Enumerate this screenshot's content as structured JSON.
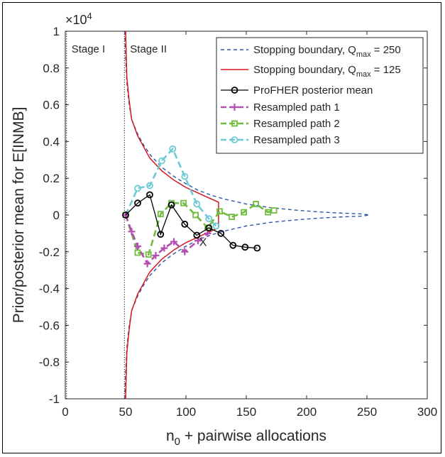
{
  "chart_data": {
    "type": "line",
    "xlabel": "n",
    "xlabel_sub": "0",
    "xlabel_rest": " + pairwise allocations",
    "ylabel": "Prior/posterior mean for E[INMB]",
    "exponent_prefix": "×10",
    "exponent_power": "4",
    "xlim": [
      0,
      300
    ],
    "ylim": [
      -1,
      1
    ],
    "xticks": [
      0,
      50,
      100,
      150,
      200,
      250,
      300
    ],
    "yticks": [
      -1,
      -0.8,
      -0.6,
      -0.4,
      -0.2,
      0,
      0.2,
      0.4,
      0.6,
      0.8,
      1
    ],
    "xtick_labels": [
      "0",
      "50",
      "100",
      "150",
      "200",
      "250",
      "300"
    ],
    "ytick_labels": [
      "-1",
      "-0.8",
      "-0.6",
      "-0.4",
      "-0.2",
      "0",
      "0.2",
      "0.4",
      "0.6",
      "0.8",
      "1"
    ],
    "stage_labels": [
      "Stage I",
      "Stage II"
    ],
    "stage_line_x": [
      1,
      49
    ],
    "annotation": {
      "text": "X",
      "x": 114,
      "y": -0.145
    },
    "grid": false,
    "legend_position": "top-right",
    "colors": {
      "boundary_250": "#2e56a8",
      "boundary_125": "#d7191c",
      "posterior_mean": "#000000",
      "path1": "#b44fb1",
      "path2": "#6fbd3e",
      "path3": "#6ccad4"
    },
    "series": [
      {
        "name": "Stopping boundary, Q_max = 250",
        "legend_main": "Stopping boundary, Q",
        "legend_sub": "max",
        "legend_tail": " = 250",
        "style": "dashed",
        "upper": [
          [
            49.3,
            1.0
          ],
          [
            50,
            0.86
          ],
          [
            51,
            0.72
          ],
          [
            53,
            0.6
          ],
          [
            55,
            0.52
          ],
          [
            60,
            0.44
          ],
          [
            65,
            0.38
          ],
          [
            70,
            0.33
          ],
          [
            80,
            0.26
          ],
          [
            90,
            0.21
          ],
          [
            100,
            0.17
          ],
          [
            110,
            0.135
          ],
          [
            120,
            0.11
          ],
          [
            130,
            0.09
          ],
          [
            150,
            0.06
          ],
          [
            170,
            0.04
          ],
          [
            190,
            0.027
          ],
          [
            210,
            0.017
          ],
          [
            230,
            0.01
          ],
          [
            245,
            0.006
          ],
          [
            252,
            0.0
          ]
        ],
        "lower": [
          [
            49.3,
            -1.0
          ],
          [
            50,
            -0.86
          ],
          [
            51,
            -0.72
          ],
          [
            53,
            -0.6
          ],
          [
            55,
            -0.52
          ],
          [
            60,
            -0.44
          ],
          [
            65,
            -0.38
          ],
          [
            70,
            -0.33
          ],
          [
            80,
            -0.26
          ],
          [
            90,
            -0.21
          ],
          [
            100,
            -0.17
          ],
          [
            110,
            -0.135
          ],
          [
            120,
            -0.11
          ],
          [
            130,
            -0.09
          ],
          [
            150,
            -0.06
          ],
          [
            170,
            -0.04
          ],
          [
            190,
            -0.027
          ],
          [
            210,
            -0.017
          ],
          [
            230,
            -0.01
          ],
          [
            245,
            -0.006
          ],
          [
            252,
            0.0
          ]
        ]
      },
      {
        "name": "Stopping boundary, Q_max = 125",
        "legend_main": "Stopping boundary, Q",
        "legend_sub": "max",
        "legend_tail": " = 125",
        "style": "solid",
        "upper": [
          [
            50,
            1.0
          ],
          [
            50.5,
            0.88
          ],
          [
            51,
            0.75
          ],
          [
            53,
            0.62
          ],
          [
            55,
            0.52
          ],
          [
            60,
            0.43
          ],
          [
            65,
            0.37
          ],
          [
            70,
            0.31
          ],
          [
            80,
            0.24
          ],
          [
            90,
            0.19
          ],
          [
            100,
            0.15
          ],
          [
            110,
            0.12
          ],
          [
            120,
            0.09
          ],
          [
            127,
            0.07
          ],
          [
            127,
            -0.07
          ]
        ],
        "lower": [
          [
            50,
            -1.0
          ],
          [
            50.5,
            -0.88
          ],
          [
            51,
            -0.75
          ],
          [
            53,
            -0.62
          ],
          [
            55,
            -0.52
          ],
          [
            60,
            -0.43
          ],
          [
            65,
            -0.37
          ],
          [
            70,
            -0.31
          ],
          [
            80,
            -0.24
          ],
          [
            90,
            -0.19
          ],
          [
            100,
            -0.15
          ],
          [
            110,
            -0.12
          ],
          [
            120,
            -0.09
          ],
          [
            127,
            -0.07
          ]
        ]
      },
      {
        "name": "ProFHER posterior mean",
        "marker": "circle",
        "x": [
          50,
          60,
          70,
          79,
          88,
          99,
          109,
          119,
          129,
          139,
          149,
          159
        ],
        "y": [
          0.0,
          0.065,
          0.11,
          -0.105,
          0.055,
          -0.05,
          -0.11,
          -0.07,
          -0.1,
          -0.165,
          -0.175,
          -0.18
        ]
      },
      {
        "name": "Resampled path 1",
        "marker": "plus",
        "x": [
          50,
          55,
          60,
          68,
          75,
          82,
          90,
          99,
          110,
          118
        ],
        "y": [
          0.0,
          -0.09,
          -0.17,
          -0.265,
          -0.22,
          -0.18,
          -0.145,
          -0.2,
          -0.14,
          -0.1
        ]
      },
      {
        "name": "Resampled path 2",
        "marker": "square",
        "x": [
          50,
          60,
          69,
          79,
          88,
          98,
          108,
          118,
          128,
          138,
          148,
          158,
          168,
          173
        ],
        "y": [
          0.0,
          -0.205,
          -0.215,
          0.005,
          0.065,
          0.065,
          0.0,
          -0.07,
          0.02,
          -0.01,
          0.015,
          0.06,
          0.015,
          0.025
        ]
      },
      {
        "name": "Resampled path 3",
        "marker": "circle",
        "x": [
          50,
          60,
          70,
          80,
          89,
          99,
          109,
          119,
          125
        ],
        "y": [
          0.0,
          0.145,
          0.16,
          0.295,
          0.36,
          0.21,
          0.06,
          -0.02,
          -0.06
        ]
      }
    ]
  }
}
